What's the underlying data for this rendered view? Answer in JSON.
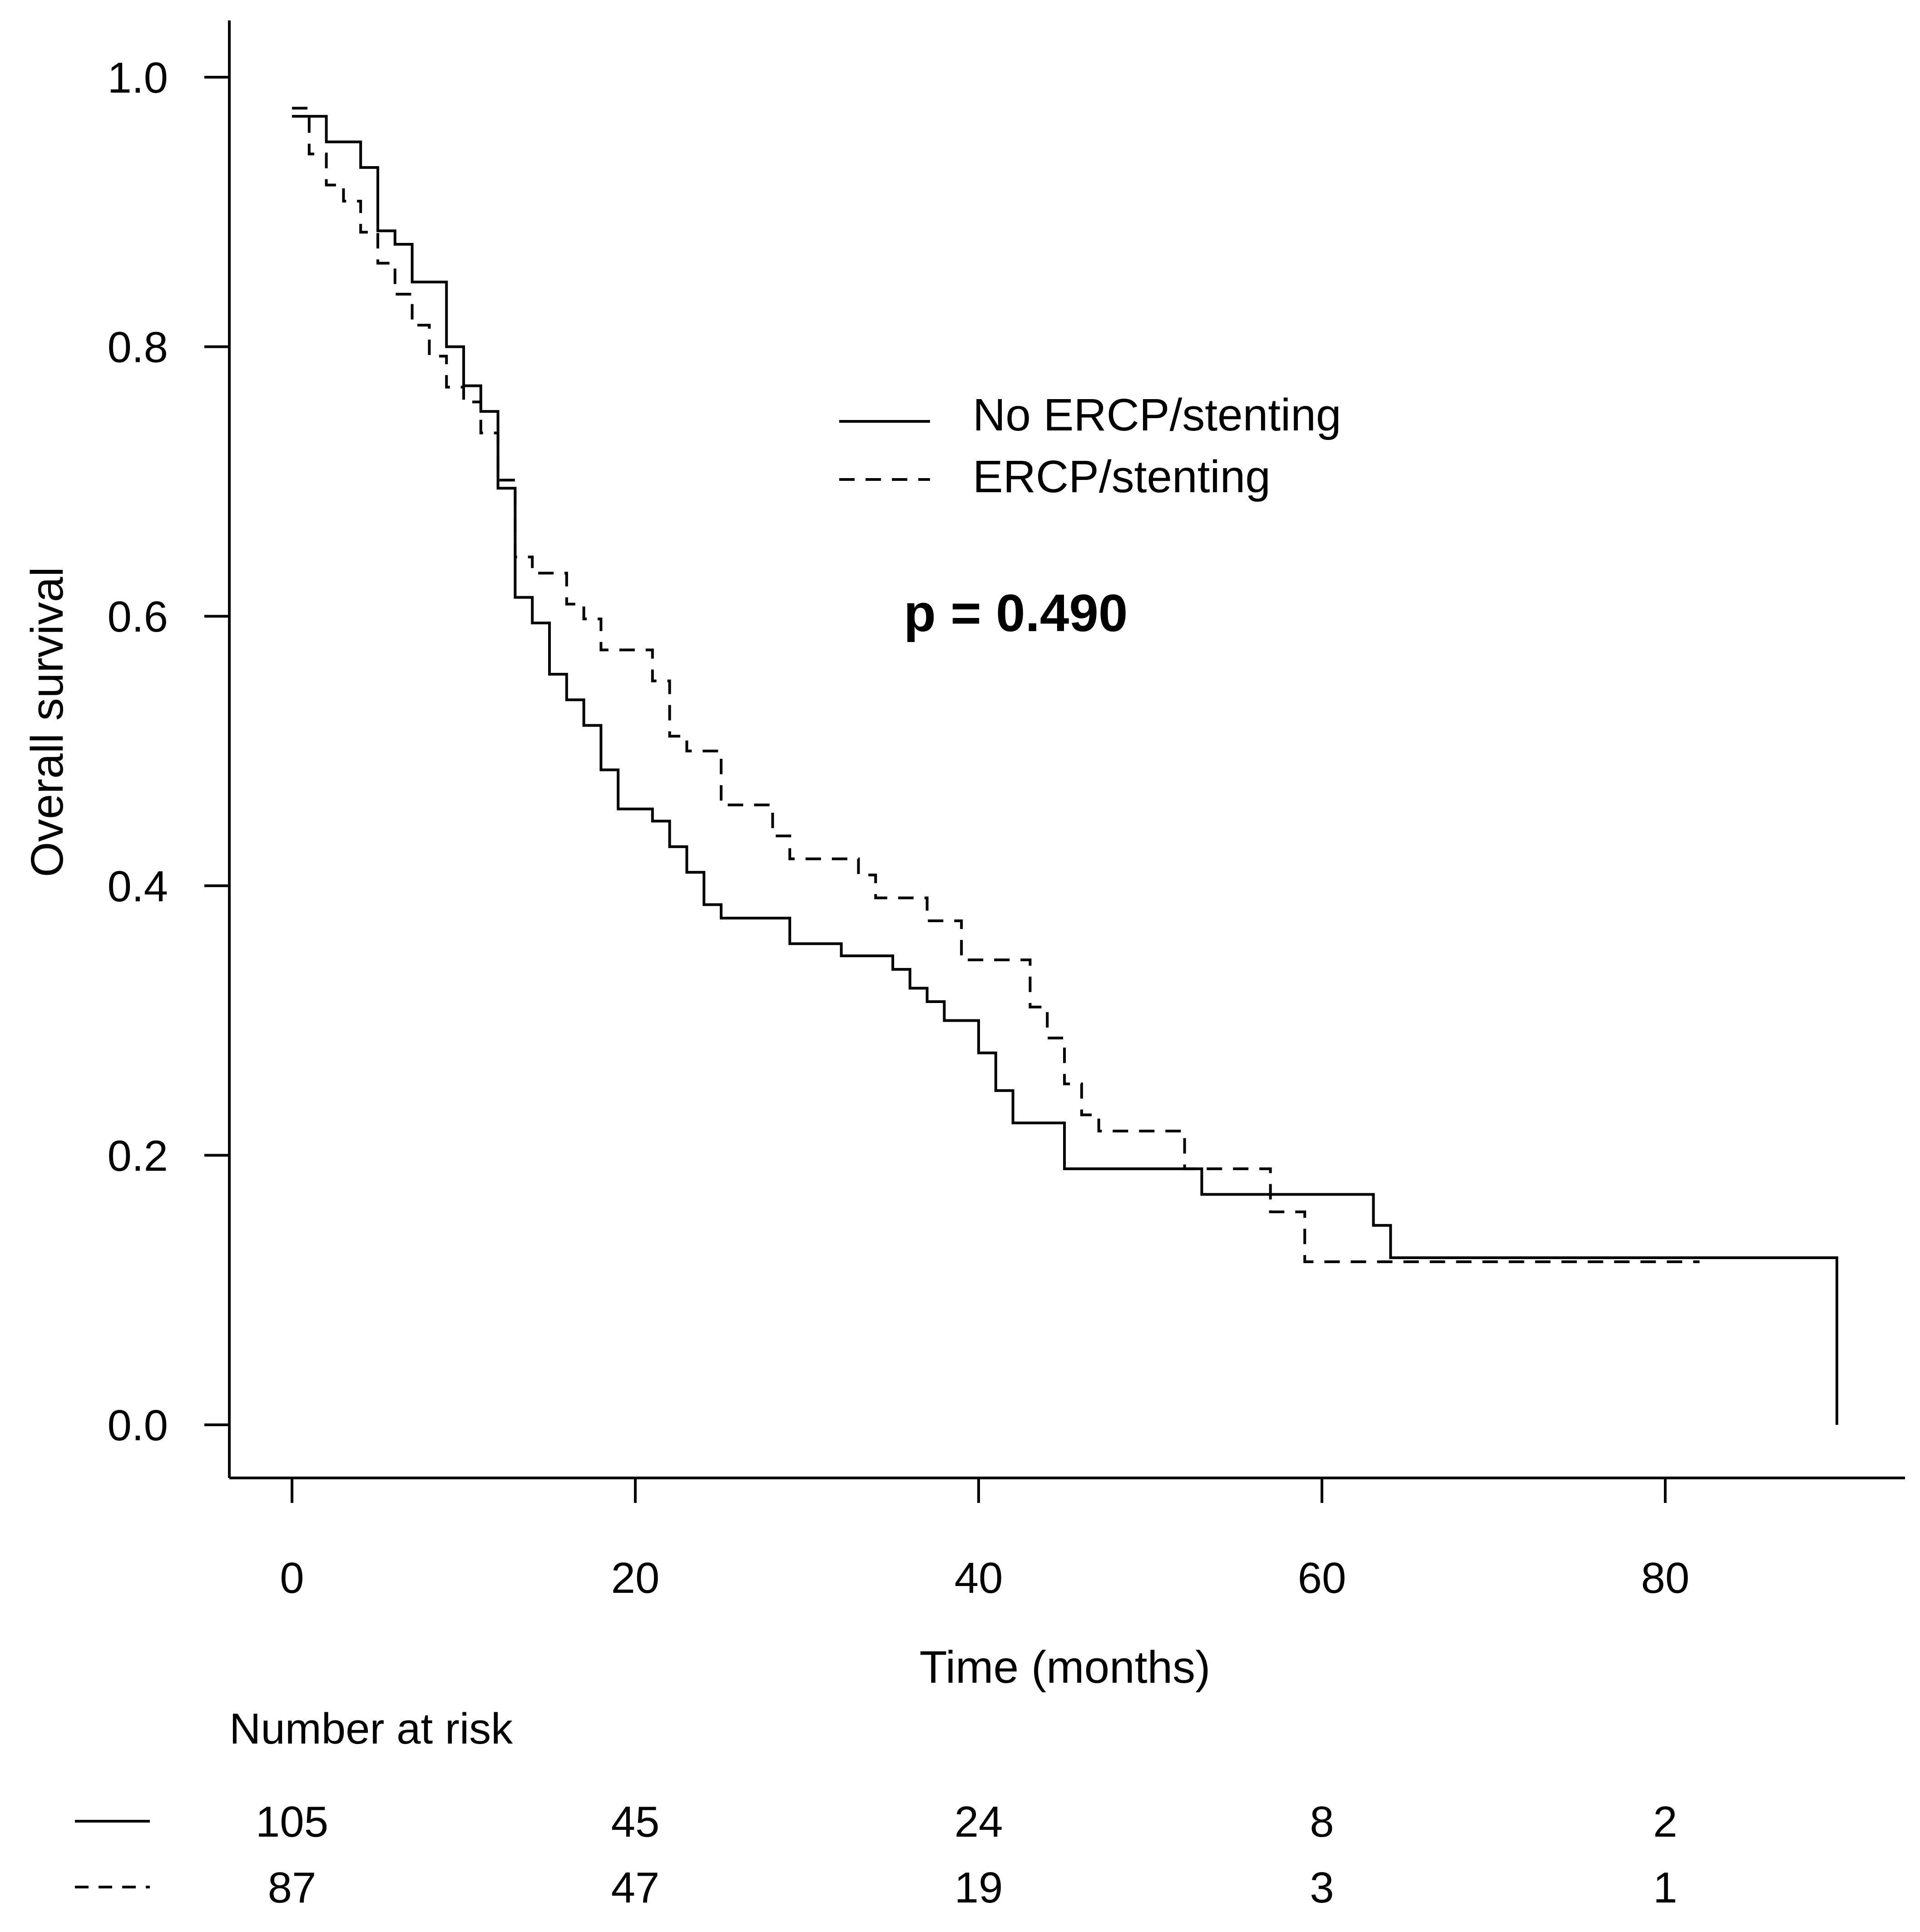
{
  "chart_data": {
    "type": "line",
    "subtype": "kaplan-meier",
    "title": "",
    "xlabel": "Time (months)",
    "ylabel": "Overall survival",
    "xlim": [
      0,
      90
    ],
    "ylim": [
      0,
      1
    ],
    "x_ticks": [
      "0",
      "20",
      "40",
      "60",
      "80"
    ],
    "y_ticks": [
      "0.0",
      "0.2",
      "0.4",
      "0.6",
      "0.8",
      "1.0"
    ],
    "grid": false,
    "legend_position": "top-center",
    "annotation": "p = 0.490",
    "series": [
      {
        "name": "No ERCP/stenting",
        "style": "solid",
        "points": [
          [
            0,
            0.971
          ],
          [
            2,
            0.952
          ],
          [
            4,
            0.933
          ],
          [
            5,
            0.886
          ],
          [
            6,
            0.876
          ],
          [
            7,
            0.848
          ],
          [
            9,
            0.8
          ],
          [
            10,
            0.771
          ],
          [
            11,
            0.752
          ],
          [
            12,
            0.695
          ],
          [
            13,
            0.614
          ],
          [
            14,
            0.595
          ],
          [
            15,
            0.557
          ],
          [
            16,
            0.538
          ],
          [
            17,
            0.519
          ],
          [
            18,
            0.486
          ],
          [
            19,
            0.457
          ],
          [
            21,
            0.448
          ],
          [
            22,
            0.429
          ],
          [
            23,
            0.41
          ],
          [
            24,
            0.386
          ],
          [
            25,
            0.376
          ],
          [
            29,
            0.357
          ],
          [
            32,
            0.348
          ],
          [
            35,
            0.338
          ],
          [
            36,
            0.324
          ],
          [
            37,
            0.314
          ],
          [
            38,
            0.3
          ],
          [
            40,
            0.276
          ],
          [
            41,
            0.248
          ],
          [
            42,
            0.224
          ],
          [
            45,
            0.19
          ],
          [
            53,
            0.171
          ],
          [
            63,
            0.148
          ],
          [
            64,
            0.124
          ],
          [
            90,
            0.0
          ]
        ],
        "end_x": 90
      },
      {
        "name": "ERCP/stenting",
        "style": "dashed",
        "points": [
          [
            0,
            0.977
          ],
          [
            1,
            0.943
          ],
          [
            2,
            0.92
          ],
          [
            3,
            0.908
          ],
          [
            4,
            0.885
          ],
          [
            5,
            0.862
          ],
          [
            6,
            0.839
          ],
          [
            7,
            0.816
          ],
          [
            8,
            0.793
          ],
          [
            9,
            0.77
          ],
          [
            10,
            0.759
          ],
          [
            11,
            0.736
          ],
          [
            12,
            0.701
          ],
          [
            13,
            0.644
          ],
          [
            14,
            0.632
          ],
          [
            16,
            0.609
          ],
          [
            17,
            0.598
          ],
          [
            18,
            0.575
          ],
          [
            21,
            0.552
          ],
          [
            22,
            0.511
          ],
          [
            23,
            0.5
          ],
          [
            25,
            0.46
          ],
          [
            28,
            0.437
          ],
          [
            29,
            0.42
          ],
          [
            33,
            0.408
          ],
          [
            34,
            0.391
          ],
          [
            37,
            0.374
          ],
          [
            39,
            0.345
          ],
          [
            43,
            0.31
          ],
          [
            44,
            0.287
          ],
          [
            45,
            0.253
          ],
          [
            46,
            0.23
          ],
          [
            47,
            0.218
          ],
          [
            52,
            0.19
          ],
          [
            57,
            0.158
          ],
          [
            59,
            0.121
          ]
        ],
        "end_x": 82
      }
    ],
    "number_at_risk": {
      "title": "Number at risk",
      "times": [
        0,
        20,
        40,
        60,
        80
      ],
      "rows": [
        {
          "name": "No ERCP/stenting",
          "style": "solid",
          "values": [
            "105",
            "45",
            "24",
            "8",
            "2"
          ]
        },
        {
          "name": "ERCP/stenting",
          "style": "dashed",
          "values": [
            "87",
            "47",
            "19",
            "3",
            "1"
          ]
        }
      ]
    }
  }
}
